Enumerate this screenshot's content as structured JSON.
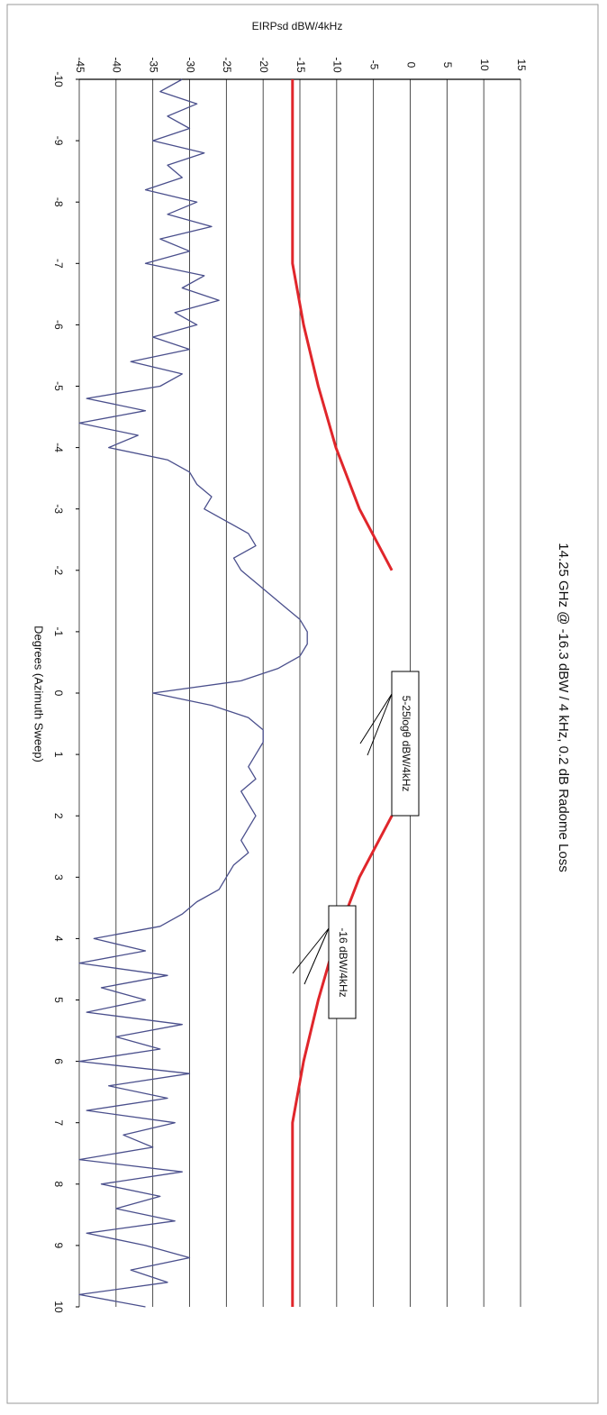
{
  "chart_data": {
    "type": "line",
    "title": "14.25 GHz @ -16.3 dBW / 4 kHz, 0.2 dB Radome Loss",
    "x_label": "Degrees (Azimuth Sweep)",
    "y_label": "EIRPsd dBW/4kHz",
    "xlim": [
      -10,
      10
    ],
    "xticks": [
      -10,
      -9,
      -8,
      -7,
      -6,
      -5,
      -4,
      -3,
      -2,
      -1,
      0,
      1,
      2,
      3,
      4,
      5,
      6,
      7,
      8,
      9,
      10
    ],
    "ylim": [
      -45,
      15
    ],
    "yticks": [
      -45,
      -40,
      -35,
      -30,
      -25,
      -20,
      -15,
      -10,
      -5,
      0,
      5,
      10,
      15
    ],
    "grid": true,
    "annotations": [
      "5-25logθ dBW/4kHz",
      "-16 dBW/4kHz"
    ],
    "series": [
      {
        "color": "#4a4f8c",
        "width": 1.3,
        "x": [
          -10,
          -9.8,
          -9.6,
          -9.4,
          -9.2,
          -9,
          -8.8,
          -8.6,
          -8.4,
          -8.2,
          -8,
          -7.8,
          -7.6,
          -7.4,
          -7.2,
          -7,
          -6.8,
          -6.6,
          -6.4,
          -6.2,
          -6,
          -5.8,
          -5.6,
          -5.4,
          -5.2,
          -5,
          -4.8,
          -4.6,
          -4.4,
          -4.2,
          -4,
          -3.8,
          -3.6,
          -3.4,
          -3.2,
          -3,
          -2.8,
          -2.6,
          -2.4,
          -2.2,
          -2,
          -1.8,
          -1.6,
          -1.4,
          -1.2,
          -1,
          -0.8,
          -0.6,
          -0.4,
          -0.2,
          0,
          0.2,
          0.4,
          0.6,
          0.8,
          1,
          1.2,
          1.4,
          1.6,
          1.8,
          2,
          2.2,
          2.4,
          2.6,
          2.8,
          3,
          3.2,
          3.4,
          3.6,
          3.8,
          4,
          4.2,
          4.4,
          4.6,
          4.8,
          5,
          5.2,
          5.4,
          5.6,
          5.8,
          6,
          6.2,
          6.4,
          6.6,
          6.8,
          7,
          7.2,
          7.4,
          7.6,
          7.8,
          8,
          8.2,
          8.4,
          8.6,
          8.8,
          9,
          9.2,
          9.4,
          9.6,
          9.8,
          10
        ],
        "values": [
          -31,
          -34,
          -29,
          -33,
          -30,
          -35,
          -28,
          -33,
          -31,
          -36,
          -29,
          -33,
          -27,
          -34,
          -30,
          -36,
          -28,
          -31,
          -26,
          -32,
          -29,
          -35,
          -30,
          -38,
          -31,
          -34,
          -44,
          -36,
          -45,
          -37,
          -41,
          -33,
          -30,
          -29,
          -27,
          -28,
          -25,
          -22,
          -21,
          -24,
          -23,
          -21,
          -19,
          -17,
          -15,
          -14,
          -14,
          -15,
          -18,
          -23,
          -35,
          -27,
          -22,
          -20,
          -20,
          -21,
          -22,
          -21,
          -23,
          -22,
          -21,
          -22,
          -23,
          -22,
          -24,
          -25,
          -26,
          -29,
          -31,
          -34,
          -43,
          -36,
          -45,
          -33,
          -42,
          -36,
          -44,
          -31,
          -40,
          -34,
          -45,
          -30,
          -41,
          -33,
          -44,
          -32,
          -39,
          -35,
          -45,
          -31,
          -42,
          -34,
          -40,
          -32,
          -44,
          -36,
          -30,
          -38,
          -33,
          -45,
          -36
        ]
      },
      {
        "color": "#e0262b",
        "width": 3,
        "x": [
          -10,
          -7,
          -6,
          -5,
          -4,
          -3,
          -2,
          0,
          2,
          3,
          4,
          5,
          6,
          7,
          10
        ],
        "values": [
          -16,
          -16,
          -14.5,
          -12.5,
          -10.1,
          -6.9,
          -2.5,
          null,
          -2.5,
          -6.9,
          -10.1,
          -12.5,
          -14.5,
          -16,
          -16
        ]
      }
    ]
  }
}
